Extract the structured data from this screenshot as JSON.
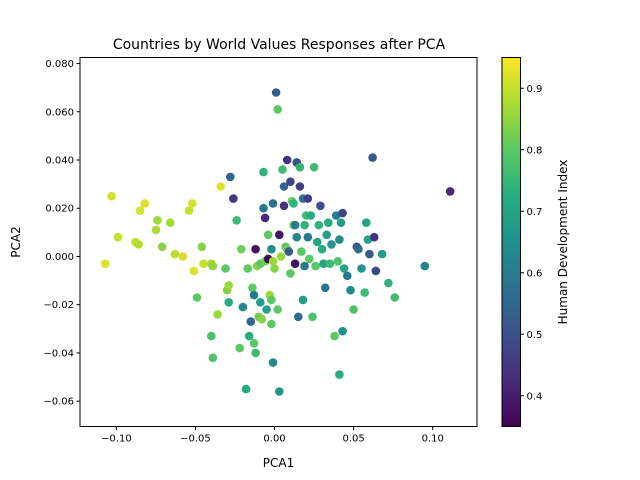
{
  "chart_data": {
    "type": "scatter",
    "title": "Countries by World Values Responses after PCA",
    "xlabel": "PCA1",
    "ylabel": "PCA2",
    "xlim": [
      -0.123,
      0.128
    ],
    "ylim": [
      -0.0705,
      0.0825
    ],
    "xticks": [
      -0.1,
      -0.05,
      0.0,
      0.05,
      0.1
    ],
    "xtick_labels": [
      "−0.10",
      "−0.05",
      "0.00",
      "0.05",
      "0.10"
    ],
    "yticks": [
      -0.06,
      -0.04,
      -0.02,
      0.0,
      0.02,
      0.04,
      0.06,
      0.08
    ],
    "ytick_labels": [
      "−0.06",
      "−0.04",
      "−0.02",
      "0.000",
      "0.020",
      "0.040",
      "0.060",
      "0.080"
    ],
    "grid": false,
    "colorbar": {
      "label": "Human Development Index",
      "colormap": "viridis",
      "range": [
        0.35,
        0.95
      ],
      "ticks": [
        0.4,
        0.5,
        0.6,
        0.7,
        0.8,
        0.9
      ],
      "tick_labels": [
        "0.4",
        "0.5",
        "0.6",
        "0.7",
        "0.8",
        "0.9"
      ]
    },
    "points": [
      {
        "x": -0.107,
        "y": -0.003,
        "hdi": 0.92
      },
      {
        "x": -0.103,
        "y": 0.025,
        "hdi": 0.91
      },
      {
        "x": -0.099,
        "y": 0.008,
        "hdi": 0.9
      },
      {
        "x": -0.088,
        "y": 0.006,
        "hdi": 0.9
      },
      {
        "x": -0.086,
        "y": 0.005,
        "hdi": 0.88
      },
      {
        "x": -0.085,
        "y": 0.019,
        "hdi": 0.91
      },
      {
        "x": -0.082,
        "y": 0.022,
        "hdi": 0.92
      },
      {
        "x": -0.075,
        "y": 0.011,
        "hdi": 0.88
      },
      {
        "x": -0.074,
        "y": 0.015,
        "hdi": 0.86
      },
      {
        "x": -0.071,
        "y": 0.004,
        "hdi": 0.84
      },
      {
        "x": -0.066,
        "y": 0.014,
        "hdi": 0.87
      },
      {
        "x": -0.063,
        "y": 0.001,
        "hdi": 0.89
      },
      {
        "x": -0.058,
        "y": 0.0,
        "hdi": 0.91
      },
      {
        "x": -0.054,
        "y": 0.019,
        "hdi": 0.9
      },
      {
        "x": -0.052,
        "y": 0.022,
        "hdi": 0.91
      },
      {
        "x": -0.051,
        "y": -0.006,
        "hdi": 0.92
      },
      {
        "x": -0.049,
        "y": -0.017,
        "hdi": 0.8
      },
      {
        "x": -0.046,
        "y": 0.004,
        "hdi": 0.84
      },
      {
        "x": -0.045,
        "y": -0.003,
        "hdi": 0.9
      },
      {
        "x": -0.04,
        "y": -0.003,
        "hdi": 0.87
      },
      {
        "x": -0.039,
        "y": -0.004,
        "hdi": 0.85
      },
      {
        "x": -0.04,
        "y": -0.033,
        "hdi": 0.78
      },
      {
        "x": -0.039,
        "y": -0.042,
        "hdi": 0.78
      },
      {
        "x": -0.036,
        "y": -0.024,
        "hdi": 0.86
      },
      {
        "x": -0.034,
        "y": 0.029,
        "hdi": 0.92
      },
      {
        "x": -0.031,
        "y": -0.005,
        "hdi": 0.8
      },
      {
        "x": -0.03,
        "y": -0.014,
        "hdi": 0.84
      },
      {
        "x": -0.029,
        "y": -0.012,
        "hdi": 0.86
      },
      {
        "x": -0.029,
        "y": -0.019,
        "hdi": 0.72
      },
      {
        "x": -0.028,
        "y": 0.033,
        "hdi": 0.55
      },
      {
        "x": -0.026,
        "y": 0.024,
        "hdi": 0.45
      },
      {
        "x": -0.024,
        "y": 0.015,
        "hdi": 0.76
      },
      {
        "x": -0.022,
        "y": -0.038,
        "hdi": 0.8
      },
      {
        "x": -0.021,
        "y": 0.003,
        "hdi": 0.82
      },
      {
        "x": -0.02,
        "y": -0.021,
        "hdi": 0.64
      },
      {
        "x": -0.018,
        "y": -0.055,
        "hdi": 0.72
      },
      {
        "x": -0.017,
        "y": -0.005,
        "hdi": 0.8
      },
      {
        "x": -0.016,
        "y": -0.033,
        "hdi": 0.72
      },
      {
        "x": -0.015,
        "y": -0.027,
        "hdi": 0.55
      },
      {
        "x": -0.014,
        "y": -0.013,
        "hdi": 0.8
      },
      {
        "x": -0.013,
        "y": -0.016,
        "hdi": 0.6
      },
      {
        "x": -0.013,
        "y": -0.036,
        "hdi": 0.8
      },
      {
        "x": -0.012,
        "y": -0.04,
        "hdi": 0.76
      },
      {
        "x": -0.012,
        "y": 0.003,
        "hdi": 0.38
      },
      {
        "x": -0.011,
        "y": -0.004,
        "hdi": 0.84
      },
      {
        "x": -0.01,
        "y": -0.025,
        "hdi": 0.82
      },
      {
        "x": -0.009,
        "y": -0.003,
        "hdi": 0.8
      },
      {
        "x": -0.009,
        "y": -0.019,
        "hdi": 0.68
      },
      {
        "x": -0.008,
        "y": -0.026,
        "hdi": 0.84
      },
      {
        "x": -0.007,
        "y": 0.035,
        "hdi": 0.74
      },
      {
        "x": -0.007,
        "y": 0.02,
        "hdi": 0.6
      },
      {
        "x": -0.006,
        "y": 0.016,
        "hdi": 0.42
      },
      {
        "x": -0.006,
        "y": -0.002,
        "hdi": 0.82
      },
      {
        "x": -0.005,
        "y": -0.022,
        "hdi": 0.7
      },
      {
        "x": -0.004,
        "y": 0.009,
        "hdi": 0.8
      },
      {
        "x": -0.004,
        "y": -0.001,
        "hdi": 0.36
      },
      {
        "x": -0.003,
        "y": -0.016,
        "hdi": 0.86
      },
      {
        "x": -0.002,
        "y": -0.028,
        "hdi": 0.8
      },
      {
        "x": -0.002,
        "y": 0.003,
        "hdi": 0.65
      },
      {
        "x": -0.002,
        "y": -0.018,
        "hdi": 0.8
      },
      {
        "x": -0.001,
        "y": -0.044,
        "hdi": 0.64
      },
      {
        "x": -0.001,
        "y": 0.022,
        "hdi": 0.58
      },
      {
        "x": -0.001,
        "y": -0.002,
        "hdi": 0.86
      },
      {
        "x": 0.0,
        "y": -0.005,
        "hdi": 0.84
      },
      {
        "x": 0.001,
        "y": 0.068,
        "hdi": 0.52
      },
      {
        "x": 0.002,
        "y": -0.022,
        "hdi": 0.8
      },
      {
        "x": 0.002,
        "y": 0.061,
        "hdi": 0.8
      },
      {
        "x": 0.003,
        "y": 0.009,
        "hdi": 0.38
      },
      {
        "x": 0.003,
        "y": -0.056,
        "hdi": 0.66
      },
      {
        "x": 0.004,
        "y": 0.0,
        "hdi": 0.86
      },
      {
        "x": 0.005,
        "y": 0.036,
        "hdi": 0.76
      },
      {
        "x": 0.006,
        "y": 0.029,
        "hdi": 0.54
      },
      {
        "x": 0.006,
        "y": 0.021,
        "hdi": 0.44
      },
      {
        "x": 0.007,
        "y": 0.004,
        "hdi": 0.8
      },
      {
        "x": 0.008,
        "y": 0.003,
        "hdi": 0.82
      },
      {
        "x": 0.008,
        "y": 0.04,
        "hdi": 0.44
      },
      {
        "x": 0.009,
        "y": 0.002,
        "hdi": 0.52
      },
      {
        "x": 0.01,
        "y": -0.007,
        "hdi": 0.8
      },
      {
        "x": 0.01,
        "y": 0.031,
        "hdi": 0.48
      },
      {
        "x": 0.011,
        "y": 0.023,
        "hdi": 0.82
      },
      {
        "x": 0.012,
        "y": 0.013,
        "hdi": 0.84
      },
      {
        "x": 0.012,
        "y": 0.022,
        "hdi": 0.74
      },
      {
        "x": 0.013,
        "y": -0.003,
        "hdi": 0.38
      },
      {
        "x": 0.013,
        "y": 0.013,
        "hdi": 0.6
      },
      {
        "x": 0.014,
        "y": 0.039,
        "hdi": 0.5
      },
      {
        "x": 0.014,
        "y": 0.008,
        "hdi": 0.62
      },
      {
        "x": 0.015,
        "y": -0.025,
        "hdi": 0.56
      },
      {
        "x": 0.016,
        "y": 0.037,
        "hdi": 0.74
      },
      {
        "x": 0.016,
        "y": 0.029,
        "hdi": 0.46
      },
      {
        "x": 0.017,
        "y": 0.002,
        "hdi": 0.8
      },
      {
        "x": 0.018,
        "y": 0.024,
        "hdi": 0.58
      },
      {
        "x": 0.018,
        "y": -0.018,
        "hdi": 0.68
      },
      {
        "x": 0.019,
        "y": -0.004,
        "hdi": 0.6
      },
      {
        "x": 0.019,
        "y": 0.013,
        "hdi": 0.74
      },
      {
        "x": 0.02,
        "y": 0.017,
        "hdi": 0.76
      },
      {
        "x": 0.021,
        "y": 0.024,
        "hdi": 0.46
      },
      {
        "x": 0.021,
        "y": 0.008,
        "hdi": 0.6
      },
      {
        "x": 0.022,
        "y": -0.001,
        "hdi": 0.8
      },
      {
        "x": 0.023,
        "y": 0.017,
        "hdi": 0.72
      },
      {
        "x": 0.024,
        "y": -0.025,
        "hdi": 0.78
      },
      {
        "x": 0.025,
        "y": 0.037,
        "hdi": 0.76
      },
      {
        "x": 0.026,
        "y": -0.004,
        "hdi": 0.8
      },
      {
        "x": 0.027,
        "y": 0.006,
        "hdi": 0.7
      },
      {
        "x": 0.028,
        "y": 0.013,
        "hdi": 0.74
      },
      {
        "x": 0.029,
        "y": 0.021,
        "hdi": 0.5
      },
      {
        "x": 0.03,
        "y": 0.003,
        "hdi": 0.72
      },
      {
        "x": 0.031,
        "y": -0.003,
        "hdi": 0.7
      },
      {
        "x": 0.032,
        "y": -0.013,
        "hdi": 0.58
      },
      {
        "x": 0.033,
        "y": 0.009,
        "hdi": 0.68
      },
      {
        "x": 0.034,
        "y": 0.014,
        "hdi": 0.72
      },
      {
        "x": 0.035,
        "y": -0.003,
        "hdi": 0.76
      },
      {
        "x": 0.036,
        "y": 0.005,
        "hdi": 0.66
      },
      {
        "x": 0.038,
        "y": -0.033,
        "hdi": 0.8
      },
      {
        "x": 0.039,
        "y": 0.017,
        "hdi": 0.6
      },
      {
        "x": 0.04,
        "y": -0.002,
        "hdi": 0.78
      },
      {
        "x": 0.041,
        "y": 0.007,
        "hdi": 0.64
      },
      {
        "x": 0.041,
        "y": -0.049,
        "hdi": 0.72
      },
      {
        "x": 0.042,
        "y": 0.014,
        "hdi": 0.68
      },
      {
        "x": 0.043,
        "y": -0.031,
        "hdi": 0.66
      },
      {
        "x": 0.043,
        "y": 0.018,
        "hdi": 0.48
      },
      {
        "x": 0.044,
        "y": -0.005,
        "hdi": 0.7
      },
      {
        "x": 0.046,
        "y": -0.008,
        "hdi": 0.6
      },
      {
        "x": 0.048,
        "y": -0.014,
        "hdi": 0.64
      },
      {
        "x": 0.05,
        "y": -0.022,
        "hdi": 0.78
      },
      {
        "x": 0.052,
        "y": 0.004,
        "hdi": 0.5
      },
      {
        "x": 0.053,
        "y": 0.003,
        "hdi": 0.56
      },
      {
        "x": 0.055,
        "y": -0.005,
        "hdi": 0.66
      },
      {
        "x": 0.057,
        "y": -0.015,
        "hdi": 0.76
      },
      {
        "x": 0.058,
        "y": 0.014,
        "hdi": 0.7
      },
      {
        "x": 0.059,
        "y": 0.007,
        "hdi": 0.7
      },
      {
        "x": 0.06,
        "y": 0.001,
        "hdi": 0.52
      },
      {
        "x": 0.062,
        "y": 0.041,
        "hdi": 0.52
      },
      {
        "x": 0.063,
        "y": 0.008,
        "hdi": 0.44
      },
      {
        "x": 0.064,
        "y": -0.006,
        "hdi": 0.48
      },
      {
        "x": 0.068,
        "y": 0.001,
        "hdi": 0.68
      },
      {
        "x": 0.072,
        "y": -0.011,
        "hdi": 0.74
      },
      {
        "x": 0.076,
        "y": -0.017,
        "hdi": 0.76
      },
      {
        "x": 0.095,
        "y": -0.004,
        "hdi": 0.62
      },
      {
        "x": 0.111,
        "y": 0.027,
        "hdi": 0.42
      }
    ]
  }
}
